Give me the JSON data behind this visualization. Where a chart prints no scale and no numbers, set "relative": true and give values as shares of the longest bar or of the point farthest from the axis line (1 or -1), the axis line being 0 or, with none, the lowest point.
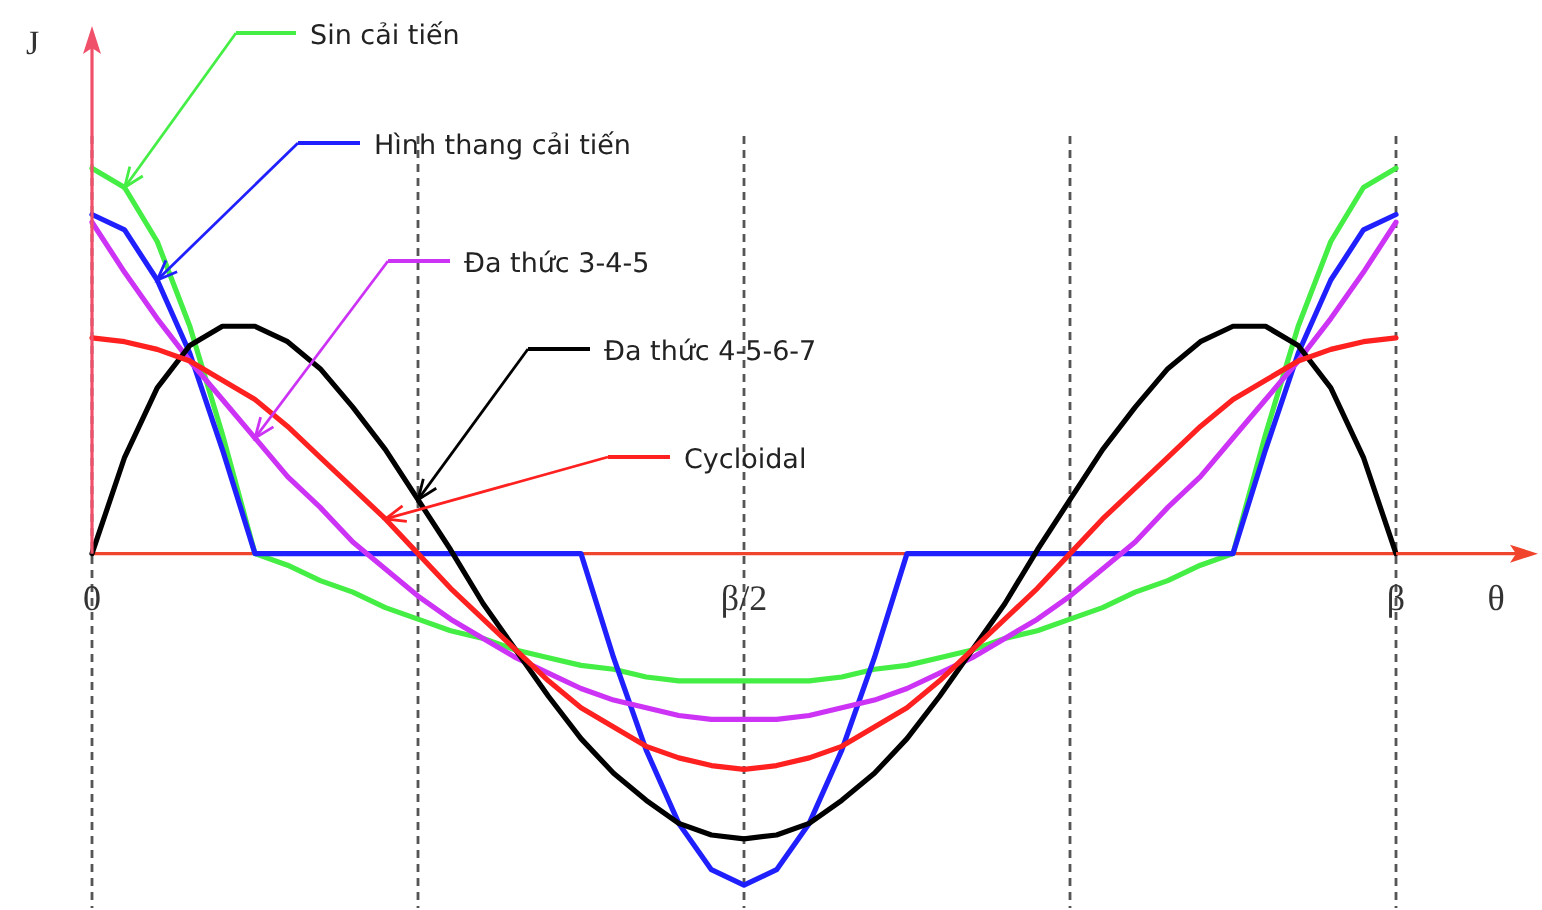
{
  "chart_data": {
    "type": "line",
    "xlabel": "θ",
    "ylabel": "J",
    "relative": true,
    "grid": "x",
    "line_style": "solid",
    "legend": "top left",
    "categories": [
      "0",
      null,
      null,
      null,
      null,
      null,
      null,
      null,
      null,
      null,
      null,
      null,
      null,
      null,
      null,
      null,
      null,
      null,
      null,
      null,
      "β/2",
      null,
      null,
      null,
      null,
      null,
      null,
      null,
      null,
      null,
      null,
      null,
      null,
      null,
      null,
      null,
      null,
      null,
      null,
      null,
      "β"
    ],
    "series": [
      {
        "name": "Sin cải tiến",
        "color": "#44ee44",
        "values": [
          1,
          0.95,
          0.81,
          0.59,
          0.31,
          0,
          -0.03,
          -0.07,
          -0.1,
          -0.14,
          -0.17,
          -0.2,
          -0.22,
          -0.25,
          -0.27,
          -0.29,
          -0.3,
          -0.32,
          -0.33,
          -0.33,
          -0.33,
          -0.33,
          -0.33,
          -0.32,
          -0.3,
          -0.29,
          -0.27,
          -0.25,
          -0.22,
          -0.2,
          -0.17,
          -0.14,
          -0.1,
          -0.07,
          -0.03,
          0,
          0.31,
          0.59,
          0.81,
          0.95,
          1
        ]
      },
      {
        "name": "Hình thang cải tiến",
        "color": "#2020ff",
        "values": [
          0.88,
          0.84,
          0.71,
          0.52,
          0.27,
          0,
          0,
          0,
          0,
          0,
          0,
          0,
          0,
          0,
          0,
          0,
          -0.27,
          -0.51,
          -0.7,
          -0.82,
          -0.86,
          -0.82,
          -0.7,
          -0.51,
          -0.27,
          0,
          0,
          0,
          0,
          0,
          0,
          0,
          0,
          0,
          0,
          0,
          0.27,
          0.52,
          0.71,
          0.84,
          0.88
        ]
      },
      {
        "name": "Đa thức 3-4-5",
        "color": "#cc33f5",
        "values": [
          0.86,
          0.73,
          0.61,
          0.5,
          0.4,
          0.3,
          0.2,
          0.12,
          0.03,
          -0.04,
          -0.11,
          -0.17,
          -0.22,
          -0.27,
          -0.31,
          -0.35,
          -0.38,
          -0.4,
          -0.42,
          -0.43,
          -0.43,
          -0.43,
          -0.42,
          -0.4,
          -0.38,
          -0.35,
          -0.31,
          -0.27,
          -0.22,
          -0.17,
          -0.11,
          -0.04,
          0.03,
          0.12,
          0.2,
          0.3,
          0.4,
          0.5,
          0.61,
          0.73,
          0.86
        ]
      },
      {
        "name": "Đa thức 4-5-6-7",
        "color": "#000000",
        "values": [
          0,
          0.25,
          0.43,
          0.54,
          0.59,
          0.59,
          0.55,
          0.48,
          0.38,
          0.27,
          0.14,
          0.01,
          -0.13,
          -0.25,
          -0.37,
          -0.48,
          -0.57,
          -0.64,
          -0.7,
          -0.73,
          -0.74,
          -0.73,
          -0.7,
          -0.64,
          -0.57,
          -0.48,
          -0.37,
          -0.25,
          -0.13,
          0.01,
          0.14,
          0.27,
          0.38,
          0.48,
          0.55,
          0.59,
          0.59,
          0.54,
          0.43,
          0.25,
          0
        ]
      },
      {
        "name": "Cycloidal",
        "color": "#ff2020",
        "values": [
          0.56,
          0.55,
          0.53,
          0.5,
          0.45,
          0.4,
          0.33,
          0.25,
          0.17,
          0.09,
          0,
          -0.09,
          -0.17,
          -0.25,
          -0.33,
          -0.4,
          -0.45,
          -0.5,
          -0.53,
          -0.55,
          -0.56,
          -0.55,
          -0.53,
          -0.5,
          -0.45,
          -0.4,
          -0.33,
          -0.25,
          -0.17,
          -0.09,
          0,
          0.09,
          0.17,
          0.25,
          0.33,
          0.4,
          0.45,
          0.5,
          0.53,
          0.55,
          0.56
        ]
      }
    ]
  }
}
